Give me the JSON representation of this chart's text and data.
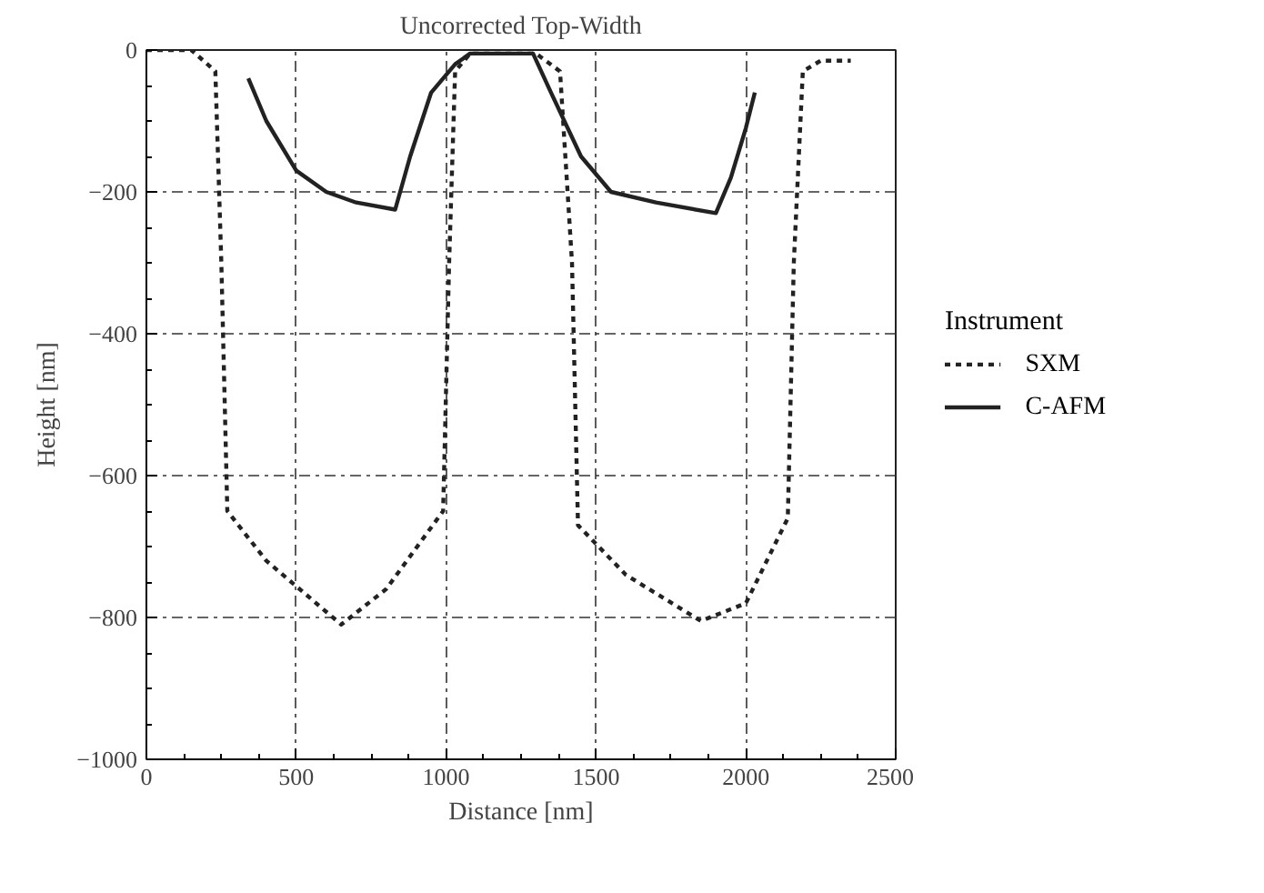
{
  "chart_data": {
    "type": "line",
    "xlabel": "Distance [nm]",
    "ylabel": "Height [nm]",
    "legend_title": "Instrument",
    "legend": "right",
    "xlim": [
      0,
      2500
    ],
    "xticks": [
      0,
      500,
      1000,
      1500,
      2000,
      2500
    ],
    "ylim": [
      -1000,
      0
    ],
    "yticks": [
      -1000,
      -800,
      -600,
      -400,
      -200,
      0
    ],
    "grid": true,
    "annotations": [
      "Uncorrected Top-Width"
    ],
    "series": [
      {
        "name": "SXM",
        "color": "#222222",
        "line_style": "dotted",
        "x": [
          0,
          150,
          230,
          250,
          270,
          400,
          650,
          800,
          990,
          1010,
          1030,
          1080,
          1300,
          1380,
          1420,
          1440,
          1600,
          1850,
          2000,
          2140,
          2160,
          2190,
          2250,
          2350
        ],
        "values": [
          0,
          0,
          -30,
          -300,
          -650,
          -720,
          -810,
          -760,
          -650,
          -300,
          -30,
          -5,
          -5,
          -30,
          -300,
          -670,
          -740,
          -805,
          -780,
          -660,
          -300,
          -30,
          -15,
          -15
        ]
      },
      {
        "name": "C-AFM",
        "color": "#222222",
        "line_style": "solid",
        "x": [
          340,
          400,
          500,
          600,
          700,
          830,
          880,
          950,
          1030,
          1080,
          1290,
          1350,
          1450,
          1550,
          1700,
          1900,
          1950,
          2000,
          2030
        ],
        "values": [
          -40,
          -100,
          -170,
          -200,
          -215,
          -225,
          -150,
          -60,
          -20,
          -5,
          -5,
          -60,
          -150,
          -200,
          -215,
          -230,
          -180,
          -110,
          -60
        ]
      }
    ]
  }
}
